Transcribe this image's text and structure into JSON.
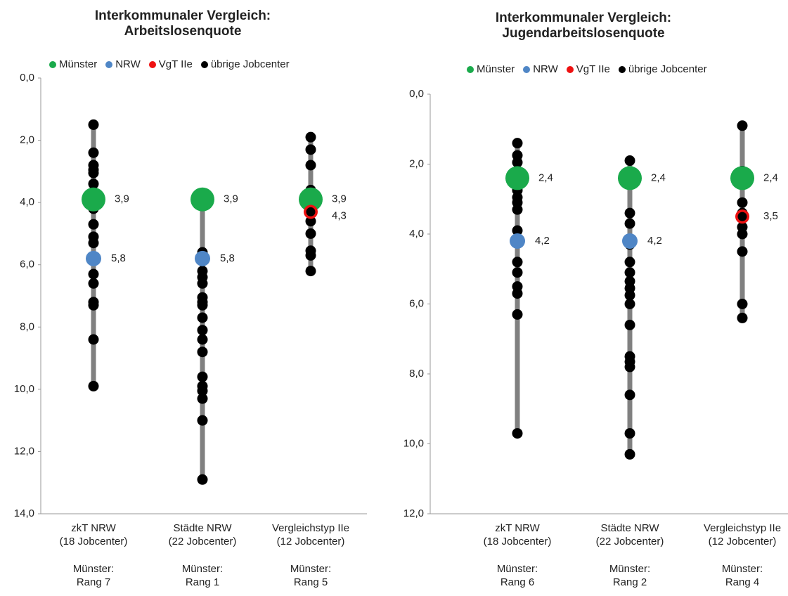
{
  "colors": {
    "muenster": "#1aaa4b",
    "nrw": "#4f86c6",
    "vgt": "#ee1111",
    "other": "#000000",
    "line": "#808080"
  },
  "legend": [
    "Münster",
    "NRW",
    "VgT IIe",
    "übrige Jobcenter"
  ],
  "chart_data": [
    {
      "type": "scatter",
      "title": [
        "Interkommunaler Vergleich:",
        "Arbeitslosenquote"
      ],
      "ylim": [
        0,
        14
      ],
      "y_inverted": true,
      "yticks": [
        "0,0",
        "2,0",
        "4,0",
        "6,0",
        "8,0",
        "10,0",
        "12,0",
        "14,0"
      ],
      "categories": [
        {
          "label1": "zkT NRW",
          "label2": "(18 Jobcenter)",
          "rank_label": "Münster:",
          "rank": "Rang 7",
          "others": [
            1.5,
            2.4,
            2.8,
            2.95,
            3.05,
            3.4,
            3.9,
            4.2,
            4.7,
            5.1,
            5.3,
            6.3,
            6.6,
            7.2,
            7.3,
            8.4,
            9.9
          ],
          "muenster": 3.9,
          "muenster_label": "3,9",
          "nrw": 5.8,
          "nrw_label": "5,8"
        },
        {
          "label1": "Städte NRW",
          "label2": "(22 Jobcenter)",
          "rank_label": "Münster:",
          "rank": "Rang 1",
          "others": [
            5.6,
            6.2,
            6.4,
            6.6,
            7.05,
            7.2,
            7.3,
            7.7,
            8.1,
            8.4,
            8.8,
            9.6,
            9.9,
            10.05,
            10.3,
            11.0,
            12.9
          ],
          "muenster": 3.9,
          "muenster_label": "3,9",
          "nrw": 5.8,
          "nrw_label": "5,8"
        },
        {
          "label1": "Vergleichstyp IIe",
          "label2": "(12 Jobcenter)",
          "rank_label": "Münster:",
          "rank": "Rang 5",
          "others": [
            1.9,
            2.3,
            2.8,
            3.6,
            4.6,
            5.0,
            5.55,
            5.7,
            6.2
          ],
          "muenster": 3.9,
          "muenster_label": "3,9",
          "vgt": 4.3,
          "vgt_label": "4,3"
        }
      ]
    },
    {
      "type": "scatter",
      "title": [
        "Interkommunaler Vergleich:",
        "Jugendarbeitslosenquote"
      ],
      "ylim": [
        0,
        12
      ],
      "y_inverted": true,
      "yticks": [
        "0,0",
        "2,0",
        "4,0",
        "6,0",
        "8,0",
        "10,0",
        "12,0"
      ],
      "categories": [
        {
          "label1": "zkT NRW",
          "label2": "(18 Jobcenter)",
          "rank_label": "Münster:",
          "rank": "Rang 6",
          "others": [
            1.4,
            1.75,
            1.95,
            2.2,
            2.75,
            2.95,
            3.1,
            3.3,
            3.9,
            4.8,
            5.1,
            5.5,
            5.7,
            6.3,
            9.7
          ],
          "muenster": 2.4,
          "muenster_label": "2,4",
          "nrw": 4.2,
          "nrw_label": "4,2"
        },
        {
          "label1": "Städte NRW",
          "label2": "(22 Jobcenter)",
          "rank_label": "Münster:",
          "rank": "Rang 2",
          "others": [
            1.9,
            3.4,
            3.7,
            4.2,
            4.3,
            4.8,
            5.1,
            5.35,
            5.55,
            5.75,
            6.0,
            6.6,
            7.5,
            7.65,
            7.8,
            8.6,
            9.7,
            10.3
          ],
          "muenster": 2.4,
          "muenster_label": "2,4",
          "nrw": 4.2,
          "nrw_label": "4,2"
        },
        {
          "label1": "Vergleichstyp IIe",
          "label2": "(12 Jobcenter)",
          "rank_label": "Münster:",
          "rank": "Rang 4",
          "others": [
            0.9,
            2.2,
            2.3,
            2.45,
            3.1,
            3.4,
            3.8,
            4.0,
            4.5,
            6.0,
            6.4
          ],
          "muenster": 2.4,
          "muenster_label": "2,4",
          "vgt": 3.5,
          "vgt_label": "3,5"
        }
      ]
    }
  ]
}
